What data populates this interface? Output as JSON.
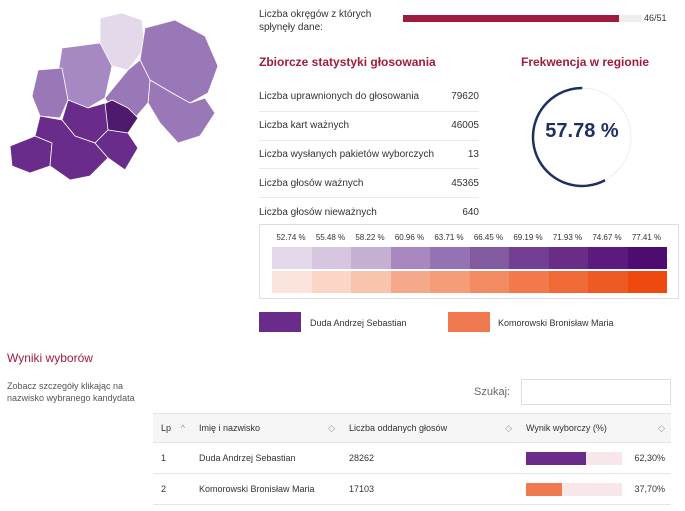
{
  "progress": {
    "label_line1": "Liczba okręgów z których",
    "label_line2": "spłynęły dane:",
    "done": 46,
    "total": 51,
    "count_text": "46/51",
    "fill_color": "#9e1b3f"
  },
  "stats": {
    "title": "Zbiorcze statystyki głosowania",
    "rows": [
      {
        "label": "Liczba uprawnionych do głosowania",
        "value": "79620"
      },
      {
        "label": "Liczba kart ważnych",
        "value": "46005"
      },
      {
        "label": "Liczba wysłanych pakietów wyborczych",
        "value": "13"
      },
      {
        "label": "Liczba głosów ważnych",
        "value": "45365"
      },
      {
        "label": "Liczba głosów nieważnych",
        "value": "640"
      }
    ]
  },
  "turnout": {
    "title": "Frekwencja w regionie",
    "value_text": "57.78 %",
    "value": 57.78,
    "ring_color": "#1e2f63"
  },
  "scale": {
    "labels": [
      "52.74 %",
      "55.48 %",
      "58.22 %",
      "60.96 %",
      "63.71 %",
      "66.45 %",
      "69.19 %",
      "71.93 %",
      "74.67 %",
      "77.41 %"
    ],
    "purple": [
      "#e4d9ea",
      "#d6c6e0",
      "#c5b0d4",
      "#a988c0",
      "#9572b1",
      "#83599f",
      "#733f92",
      "#692d88",
      "#5c1a7e",
      "#4e0b70"
    ],
    "orange": [
      "#fce4dc",
      "#fbd5c5",
      "#f9c4ad",
      "#f6a98a",
      "#f59c78",
      "#f38b62",
      "#f2794b",
      "#f06a38",
      "#ef5a24",
      "#ee4a10"
    ]
  },
  "legend": [
    {
      "name": "Duda Andrzej Sebastian",
      "color": "#6a2c8a"
    },
    {
      "name": "Komorowski Bronisław Maria",
      "color": "#f07a50"
    }
  ],
  "results": {
    "title": "Wyniki wyborów",
    "hint_line1": "Zobacz szczegóły klikając na",
    "hint_line2": "nazwisko wybranego kandydata",
    "search_label": "Szukaj:",
    "search_value": "",
    "headers": [
      "Lp",
      "Imię i nazwisko",
      "Liczba oddanych głosów",
      "Wynik wyborczy (%)"
    ],
    "rows": [
      {
        "lp": "1",
        "name": "Duda Andrzej Sebastian",
        "votes": "28262",
        "pct_text": "62,30%",
        "pct": 62.3,
        "color": "#6a2c8a"
      },
      {
        "lp": "2",
        "name": "Komorowski Bronisław Maria",
        "votes": "17103",
        "pct_text": "37,70%",
        "pct": 37.7,
        "color": "#f07a50"
      }
    ]
  },
  "map": {
    "colors": {
      "light": "#e4d9ea",
      "mid": "#9a78b8",
      "midlight": "#a688c2",
      "dark": "#6a2c8a",
      "darker": "#4e1a6e"
    }
  }
}
